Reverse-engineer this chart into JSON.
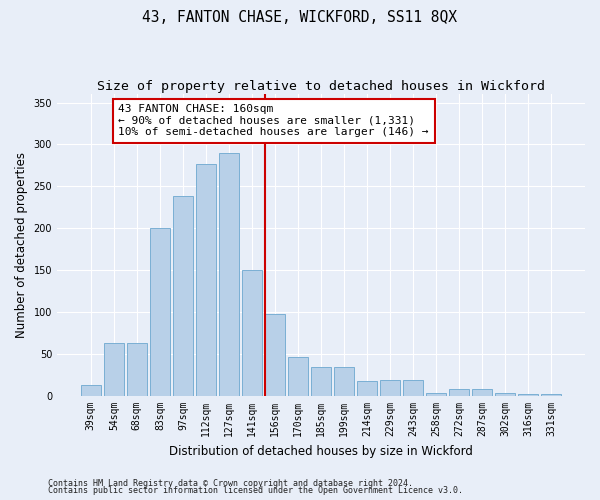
{
  "title": "43, FANTON CHASE, WICKFORD, SS11 8QX",
  "subtitle": "Size of property relative to detached houses in Wickford",
  "xlabel": "Distribution of detached houses by size in Wickford",
  "ylabel": "Number of detached properties",
  "categories": [
    "39sqm",
    "54sqm",
    "68sqm",
    "83sqm",
    "97sqm",
    "112sqm",
    "127sqm",
    "141sqm",
    "156sqm",
    "170sqm",
    "185sqm",
    "199sqm",
    "214sqm",
    "229sqm",
    "243sqm",
    "258sqm",
    "272sqm",
    "287sqm",
    "302sqm",
    "316sqm",
    "331sqm"
  ],
  "values": [
    13,
    63,
    63,
    200,
    238,
    277,
    290,
    150,
    98,
    47,
    35,
    35,
    18,
    19,
    19,
    4,
    9,
    9,
    4,
    3,
    2
  ],
  "bar_color": "#b8d0e8",
  "bar_edge_color": "#7aafd4",
  "vline_color": "#cc0000",
  "annotation_text": "43 FANTON CHASE: 160sqm\n← 90% of detached houses are smaller (1,331)\n10% of semi-detached houses are larger (146) →",
  "annotation_box_color": "#ffffff",
  "annotation_box_edge": "#cc0000",
  "ylim": [
    0,
    360
  ],
  "yticks": [
    0,
    50,
    100,
    150,
    200,
    250,
    300,
    350
  ],
  "bg_color": "#e8eef8",
  "footer1": "Contains HM Land Registry data © Crown copyright and database right 2024.",
  "footer2": "Contains public sector information licensed under the Open Government Licence v3.0.",
  "title_fontsize": 10.5,
  "subtitle_fontsize": 9.5,
  "xlabel_fontsize": 8.5,
  "ylabel_fontsize": 8.5,
  "tick_fontsize": 7,
  "annotation_fontsize": 8,
  "footer_fontsize": 6
}
